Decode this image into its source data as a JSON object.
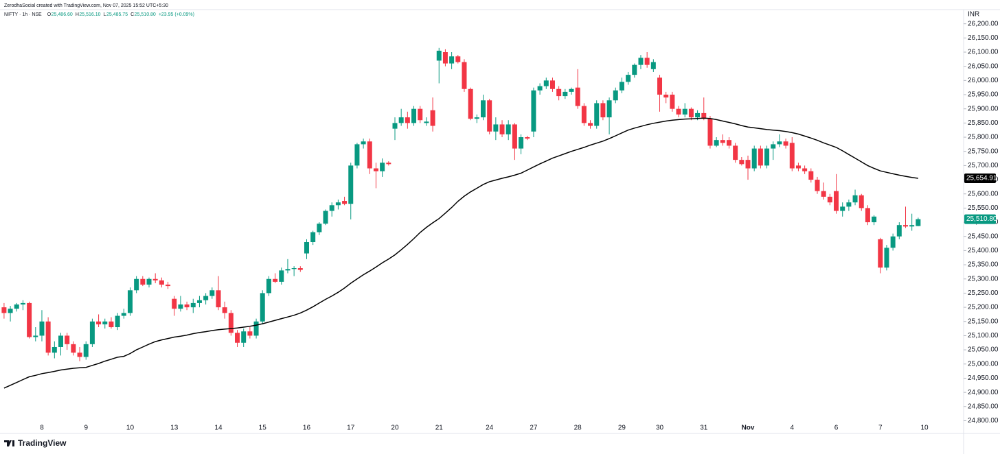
{
  "header": {
    "credit": "ZerodhaSocial created with TradingView.com, Nov 07, 2025 15:52 UTC+5:30"
  },
  "footer": {
    "logo": "TradingView"
  },
  "chart_data": {
    "type": "candlestick",
    "symbol": "NIFTY · 1h · NSE",
    "ohlc_legend": [
      {
        "key": "O",
        "value": "25,486.60"
      },
      {
        "key": "H",
        "value": "25,516.10"
      },
      {
        "key": "L",
        "value": "25,485.75"
      },
      {
        "key": "C",
        "value": "25,510.80"
      }
    ],
    "change": "+23.95 (+0.09%)",
    "currency": "INR",
    "up_color": "#089981",
    "down_color": "#f23645",
    "categories": [
      null,
      null,
      null,
      null,
      null,
      null,
      "8",
      null,
      null,
      null,
      null,
      null,
      null,
      "9",
      null,
      null,
      null,
      null,
      null,
      null,
      "10",
      null,
      null,
      null,
      null,
      null,
      null,
      "13",
      null,
      null,
      null,
      null,
      null,
      null,
      "14",
      null,
      null,
      null,
      null,
      null,
      null,
      "15",
      null,
      null,
      null,
      null,
      null,
      null,
      "16",
      null,
      null,
      null,
      null,
      null,
      null,
      "17",
      null,
      null,
      null,
      null,
      null,
      null,
      "20",
      null,
      null,
      null,
      null,
      null,
      null,
      "21",
      null,
      null,
      null,
      null,
      null,
      null,
      null,
      "24",
      null,
      null,
      null,
      null,
      null,
      null,
      "27",
      null,
      null,
      null,
      null,
      null,
      null,
      "28",
      null,
      null,
      null,
      null,
      null,
      null,
      "29",
      null,
      null,
      null,
      null,
      null,
      "30",
      null,
      null,
      null,
      null,
      null,
      null,
      "31",
      null,
      null,
      null,
      null,
      null,
      null,
      "Nov",
      null,
      null,
      null,
      null,
      null,
      null,
      "4",
      null,
      null,
      null,
      null,
      null,
      null,
      "6",
      null,
      null,
      null,
      null,
      null,
      null,
      "7",
      null,
      null,
      null,
      null,
      null,
      null,
      "10"
    ],
    "bold_categories": [
      "Nov"
    ],
    "open": [
      25200,
      25180,
      25195,
      25210,
      25215,
      25095,
      25100,
      25150,
      25040,
      25060,
      25100,
      25070,
      25040,
      25025,
      25070,
      25150,
      25140,
      25150,
      25130,
      25170,
      25180,
      25260,
      25300,
      25280,
      25300,
      25295,
      25280,
      25230,
      25195,
      25210,
      25200,
      25215,
      25225,
      25240,
      25260,
      25200,
      25180,
      25110,
      25075,
      25115,
      25100,
      25150,
      25250,
      25300,
      25290,
      25330,
      25335,
      25338,
      25390,
      25430,
      25465,
      25495,
      25540,
      25560,
      25575,
      25565,
      25700,
      25775,
      25785,
      25690,
      25680,
      25710,
      25830,
      25850,
      25870,
      25850,
      25900,
      25850,
      25895,
      26070,
      26100,
      26060,
      26085,
      26065,
      25970,
      25865,
      25870,
      25930,
      25820,
      25845,
      25810,
      25845,
      25760,
      25800,
      25820,
      25965,
      25980,
      26000,
      25970,
      25945,
      25960,
      25975,
      25910,
      25850,
      25840,
      25920,
      25870,
      25930,
      25965,
      25995,
      26020,
      26055,
      26080,
      26040,
      26010,
      25950,
      25950,
      25900,
      25880,
      25900,
      25870,
      25885,
      25865,
      25770,
      25790,
      25790,
      25770,
      25720,
      25720,
      25690,
      25760,
      25700,
      25760,
      25775,
      25785,
      25780,
      25700,
      25690,
      25680,
      25650,
      25610,
      25590,
      25610,
      25540,
      25555,
      25570,
      25595,
      25550,
      25500,
      25440,
      25340,
      25410,
      25450,
      25490,
      25485,
      25486.6,
      null
    ],
    "high": [
      25215,
      25205,
      25215,
      25225,
      25220,
      25130,
      25190,
      25165,
      25080,
      25110,
      25110,
      25080,
      25060,
      25080,
      25160,
      25175,
      25160,
      25165,
      25180,
      25195,
      25270,
      25310,
      25310,
      25305,
      25320,
      25305,
      25290,
      25240,
      25240,
      25220,
      25230,
      25240,
      25250,
      25270,
      25310,
      25220,
      25190,
      25120,
      25125,
      25130,
      25160,
      25260,
      25310,
      25320,
      25340,
      25370,
      25345,
      25345,
      25440,
      25470,
      25500,
      25545,
      25570,
      25580,
      25590,
      25710,
      25780,
      25795,
      25795,
      25710,
      25725,
      25715,
      25870,
      25900,
      25890,
      25910,
      25910,
      25870,
      25940,
      26115,
      26110,
      26100,
      26090,
      26075,
      25975,
      25880,
      25950,
      25935,
      25870,
      25860,
      25860,
      25850,
      25810,
      25805,
      25975,
      25990,
      26010,
      26010,
      25980,
      25970,
      25975,
      26040,
      25920,
      25860,
      25930,
      25930,
      25940,
      25975,
      26010,
      26030,
      26060,
      26090,
      26100,
      26075,
      26020,
      25960,
      25960,
      25910,
      25920,
      25905,
      25895,
      25940,
      25875,
      25800,
      25810,
      25800,
      25780,
      25730,
      25735,
      25770,
      25770,
      25770,
      25785,
      25810,
      25795,
      25800,
      25710,
      25700,
      25690,
      25660,
      25640,
      25600,
      25670,
      25570,
      25580,
      25615,
      25600,
      25560,
      25525,
      25445,
      25420,
      25460,
      25500,
      25555,
      25530,
      25516.1,
      null
    ],
    "low": [
      25160,
      25150,
      25185,
      25190,
      25090,
      25080,
      25080,
      25030,
      25020,
      25030,
      25050,
      25030,
      25010,
      25015,
      25060,
      25130,
      25125,
      25125,
      25120,
      25160,
      25170,
      25250,
      25275,
      25270,
      25285,
      25270,
      25265,
      25170,
      25185,
      25190,
      25180,
      25200,
      25210,
      25230,
      25190,
      25160,
      25100,
      25060,
      25060,
      25090,
      25090,
      25140,
      25240,
      25285,
      25280,
      25320,
      25310,
      25325,
      25370,
      25420,
      25455,
      25490,
      25520,
      25545,
      25560,
      25510,
      25690,
      25760,
      25670,
      25620,
      25660,
      25700,
      25790,
      25840,
      25830,
      25840,
      25850,
      25840,
      25820,
      25990,
      26050,
      26040,
      26060,
      25960,
      25860,
      25850,
      25860,
      25810,
      25790,
      25800,
      25790,
      25720,
      25740,
      25790,
      25800,
      25950,
      25970,
      25960,
      25930,
      25935,
      25950,
      25900,
      25840,
      25830,
      25830,
      25860,
      25810,
      25920,
      25955,
      25985,
      26010,
      26040,
      26045,
      26030,
      25890,
      25920,
      25890,
      25870,
      25870,
      25860,
      25860,
      25860,
      25760,
      25765,
      25770,
      25760,
      25710,
      25700,
      25650,
      25680,
      25690,
      25690,
      25720,
      25765,
      25760,
      25680,
      25680,
      25670,
      25640,
      25600,
      25580,
      25560,
      25530,
      25520,
      25540,
      25560,
      25540,
      25490,
      25490,
      25320,
      25330,
      25400,
      25440,
      25480,
      25470,
      25485.75,
      null
    ],
    "close": [
      25180,
      25195,
      25210,
      25215,
      25095,
      25100,
      25150,
      25040,
      25060,
      25100,
      25070,
      25040,
      25025,
      25070,
      25150,
      25140,
      25150,
      25130,
      25170,
      25180,
      25260,
      25300,
      25280,
      25300,
      25295,
      25280,
      25275,
      25195,
      25210,
      25200,
      25215,
      25225,
      25240,
      25260,
      25200,
      25180,
      25110,
      25075,
      25115,
      25100,
      25150,
      25250,
      25300,
      25290,
      25330,
      25335,
      25338,
      25332,
      25430,
      25465,
      25495,
      25540,
      25560,
      25570,
      25565,
      25700,
      25775,
      25785,
      25690,
      25680,
      25710,
      25705,
      25850,
      25870,
      25850,
      25900,
      25860,
      25855,
      25840,
      26105,
      26060,
      26085,
      26065,
      25970,
      25865,
      25870,
      25930,
      25820,
      25845,
      25810,
      25845,
      25760,
      25800,
      25795,
      25965,
      25980,
      26000,
      25970,
      25945,
      25960,
      25970,
      25910,
      25850,
      25840,
      25920,
      25870,
      25930,
      25965,
      25995,
      26020,
      26055,
      26080,
      26055,
      26065,
      25950,
      25940,
      25900,
      25880,
      25900,
      25870,
      25885,
      25865,
      25770,
      25790,
      25780,
      25770,
      25720,
      25705,
      25690,
      25760,
      25700,
      25760,
      25775,
      25785,
      25770,
      25690,
      25690,
      25680,
      25650,
      25610,
      25590,
      25570,
      25540,
      25555,
      25570,
      25595,
      25550,
      25500,
      25520,
      25340,
      25410,
      25450,
      25490,
      25485,
      25490,
      25510.8,
      null
    ],
    "ma": {
      "color": "#000000",
      "values": [
        24915,
        24925,
        24935,
        24945,
        24955,
        24960,
        24966,
        24970,
        24974,
        24979,
        24982,
        24985,
        24987,
        24988,
        24995,
        25002,
        25010,
        25017,
        25024,
        25027,
        25037,
        25050,
        25060,
        25070,
        25079,
        25085,
        25090,
        25095,
        25098,
        25102,
        25107,
        25111,
        25114,
        25118,
        25121,
        25123,
        25125,
        25127,
        25130,
        25133,
        25137,
        25142,
        25148,
        25154,
        25160,
        25166,
        25172,
        25180,
        25190,
        25202,
        25215,
        25228,
        25240,
        25253,
        25268,
        25285,
        25300,
        25315,
        25328,
        25342,
        25357,
        25370,
        25385,
        25403,
        25422,
        25442,
        25464,
        25482,
        25498,
        25513,
        25532,
        25552,
        25574,
        25592,
        25607,
        25620,
        25633,
        25643,
        25649,
        25655,
        25660,
        25666,
        25673,
        25684,
        25695,
        25706,
        25716,
        25726,
        25734,
        25742,
        25750,
        25757,
        25764,
        25772,
        25779,
        25786,
        25795,
        25805,
        25815,
        25825,
        25832,
        25838,
        25844,
        25849,
        25853,
        25857,
        25860,
        25862,
        25864,
        25865,
        25866,
        25867,
        25866,
        25862,
        25857,
        25852,
        25847,
        25841,
        25836,
        25833,
        25830,
        25827,
        25825,
        25823,
        25820,
        25816,
        25811,
        25804,
        25797,
        25789,
        25780,
        25772,
        25764,
        25752,
        25739,
        25726,
        25713,
        25700,
        25690,
        25681,
        25676,
        25671,
        25666,
        25662,
        25658,
        25655,
        null
      ]
    },
    "ma_last": {
      "value": 25654.91,
      "label": "25,654.91"
    },
    "last_price": {
      "value": 25510.8,
      "label": "25,510.80"
    },
    "ylim": [
      24760,
      26250
    ],
    "yticks": [
      {
        "value": 24800,
        "label": "24,800.00"
      },
      {
        "value": 24850,
        "label": "24,850.00"
      },
      {
        "value": 24900,
        "label": "24,900.00"
      },
      {
        "value": 24950,
        "label": "24,950.00"
      },
      {
        "value": 25000,
        "label": "25,000.00"
      },
      {
        "value": 25050,
        "label": "25,050.00"
      },
      {
        "value": 25100,
        "label": "25,100.00"
      },
      {
        "value": 25150,
        "label": "25,150.00"
      },
      {
        "value": 25200,
        "label": "25,200.00"
      },
      {
        "value": 25250,
        "label": "25,250.00"
      },
      {
        "value": 25300,
        "label": "25,300.00"
      },
      {
        "value": 25350,
        "label": "25,350.00"
      },
      {
        "value": 25400,
        "label": "25,400.00"
      },
      {
        "value": 25450,
        "label": "25,450.00"
      },
      {
        "value": 25500,
        "label": "25,500.00"
      },
      {
        "value": 25550,
        "label": "25,550.00"
      },
      {
        "value": 25600,
        "label": "25,600.00"
      },
      {
        "value": 25650,
        "label": "25,650.00"
      },
      {
        "value": 25700,
        "label": "25,700.00"
      },
      {
        "value": 25750,
        "label": "25,750.00"
      },
      {
        "value": 25800,
        "label": "25,800.00"
      },
      {
        "value": 25850,
        "label": "25,850.00"
      },
      {
        "value": 25900,
        "label": "25,900.00"
      },
      {
        "value": 25950,
        "label": "25,950.00"
      },
      {
        "value": 26000,
        "label": "26,000.00"
      },
      {
        "value": 26050,
        "label": "26,050.00"
      },
      {
        "value": 26100,
        "label": "26,100.00"
      },
      {
        "value": 26150,
        "label": "26,150.00"
      },
      {
        "value": 26200,
        "label": "26,200.00"
      }
    ]
  }
}
